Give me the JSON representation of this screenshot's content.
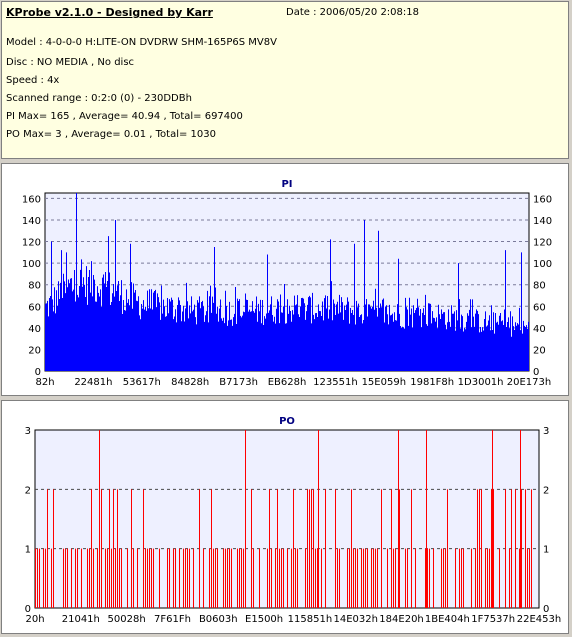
{
  "info": {
    "title": "KProbe v2.1.0 - Designed by Karr",
    "date": "Date : 2006/05/20 2:08:18",
    "lines": [
      "Model : 4-0-0-0 H:LITE-ON DVDRW SHM-165P6S MV8V",
      "Disc : NO MEDIA , No disc",
      "Speed : 4x",
      "Scanned range : 0:2:0 (0) - 230DDBh",
      "PI Max= 165 , Average= 40.94 , Total= 697400",
      "PO Max= 3 , Average= 0.01 , Total= 1030"
    ]
  },
  "colors": {
    "pi": "#0000ff",
    "po": "#ff0000",
    "plot_bg": "#eef0ff",
    "title": "#000080"
  },
  "chart_data": [
    {
      "type": "area",
      "title": "PI",
      "xlabel": "",
      "ylabel": "",
      "ylim": [
        0,
        165
      ],
      "yticks": [
        0,
        20,
        40,
        60,
        80,
        100,
        120,
        140,
        160
      ],
      "x_tick_labels": [
        "82h",
        "22481h",
        "53617h",
        "84828h",
        "B7173h",
        "EB628h",
        "123551h",
        "15E059h",
        "1981F8h",
        "1D3001h",
        "20E173h"
      ],
      "grid": true,
      "max": 165,
      "average": 40.94,
      "profile": [
        [
          0,
          58
        ],
        [
          0.05,
          78
        ],
        [
          0.1,
          82
        ],
        [
          0.15,
          72
        ],
        [
          0.2,
          62
        ],
        [
          0.3,
          56
        ],
        [
          0.4,
          55
        ],
        [
          0.5,
          58
        ],
        [
          0.6,
          58
        ],
        [
          0.7,
          52
        ],
        [
          0.8,
          52
        ],
        [
          0.9,
          46
        ],
        [
          1,
          40
        ]
      ],
      "peaks": [
        [
          0.012,
          120
        ],
        [
          0.033,
          112
        ],
        [
          0.044,
          110
        ],
        [
          0.065,
          165
        ],
        [
          0.13,
          125
        ],
        [
          0.145,
          140
        ],
        [
          0.176,
          118
        ],
        [
          0.35,
          115
        ],
        [
          0.46,
          108
        ],
        [
          0.59,
          122
        ],
        [
          0.64,
          118
        ],
        [
          0.66,
          140
        ],
        [
          0.69,
          130
        ],
        [
          0.73,
          104
        ],
        [
          0.855,
          100
        ],
        [
          0.952,
          112
        ],
        [
          0.985,
          110
        ]
      ]
    },
    {
      "type": "bar",
      "title": "PO",
      "xlabel": "",
      "ylabel": "",
      "ylim": [
        0,
        3
      ],
      "yticks": [
        0,
        1,
        2,
        3
      ],
      "x_tick_labels": [
        "20h",
        "21041h",
        "50028h",
        "7F61Fh",
        "B0603h",
        "E1500h",
        "115851h",
        "14E032h",
        "184E20h",
        "1BE404h",
        "1F7537h",
        "22E453h"
      ],
      "grid": true,
      "max": 3,
      "average": 0.01,
      "threes": [
        0.128,
        0.418,
        0.563,
        0.722,
        0.777,
        0.909,
        0.965
      ]
    }
  ]
}
